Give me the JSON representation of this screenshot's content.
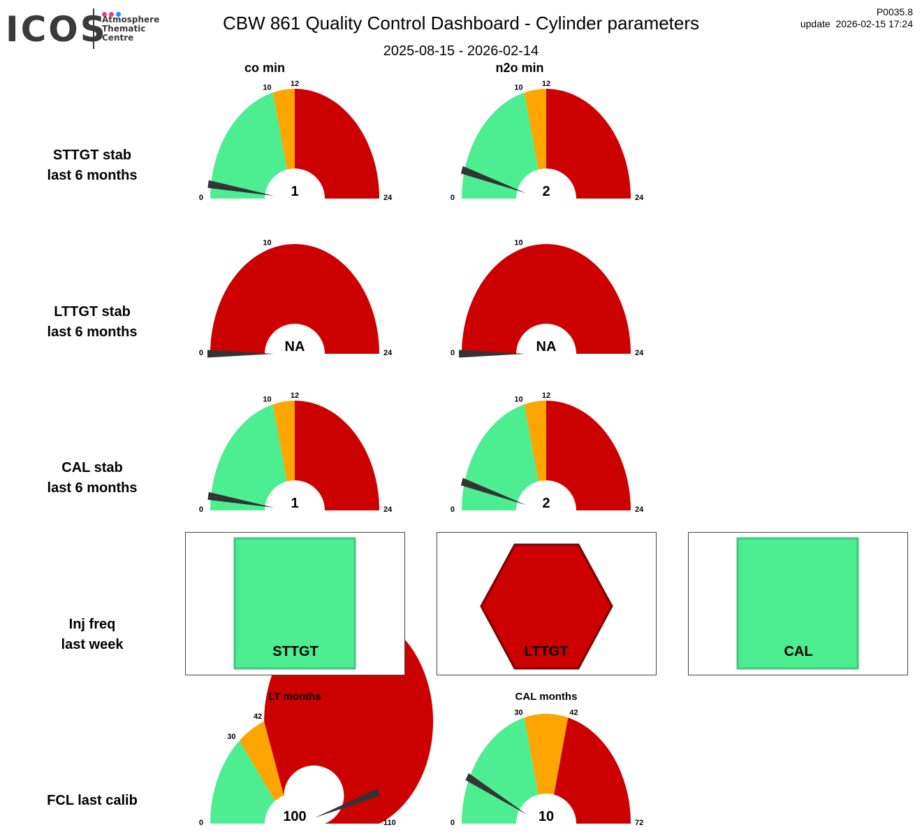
{
  "logo": {
    "main": "ICOS",
    "dot_colors": [
      "#e83e8c",
      "#e83e8c",
      "#1e90ff"
    ],
    "sub_lines": [
      "Atmosphere",
      "Thematic",
      "Centre"
    ]
  },
  "header": {
    "title": "CBW 861 Quality Control Dashboard - Cylinder parameters",
    "period": "2025-08-15 - 2026-02-14",
    "code": "P0035.8",
    "update": "update  2026-02-15 17:24"
  },
  "columns": [
    "co min",
    "n2o min"
  ],
  "rows": [
    {
      "line1": "STTGT stab",
      "line2": "last 6 months"
    },
    {
      "line1": "LTTGT stab",
      "line2": "last 6 months"
    },
    {
      "line1": "CAL stab",
      "line2": "last 6 months"
    },
    {
      "line1": "Inj freq",
      "line2": "last week"
    },
    {
      "line1": "FCL last calib",
      "line2": ""
    }
  ],
  "colors": {
    "green": "#4ded91",
    "orange": "#ffa500",
    "red": "#cc0000",
    "needle": "#333333",
    "panel_green_edge": "#3cc878",
    "panel_red_edge": "#7a0000"
  },
  "chart_data": [
    {
      "type": "gauge",
      "row": "STTGT stab",
      "column": "co min",
      "min": 0,
      "max": 24,
      "value": 1,
      "display": "1",
      "ticks": [
        "0",
        "10",
        "12",
        "24"
      ],
      "bands": [
        {
          "from": 0,
          "to": 10,
          "color": "green"
        },
        {
          "from": 10,
          "to": 12,
          "color": "orange"
        },
        {
          "from": 12,
          "to": 24,
          "color": "red"
        }
      ]
    },
    {
      "type": "gauge",
      "row": "STTGT stab",
      "column": "n2o min",
      "min": 0,
      "max": 24,
      "value": 2,
      "display": "2",
      "ticks": [
        "0",
        "10",
        "12",
        "24"
      ],
      "bands": [
        {
          "from": 0,
          "to": 10,
          "color": "green"
        },
        {
          "from": 10,
          "to": 12,
          "color": "orange"
        },
        {
          "from": 12,
          "to": 24,
          "color": "red"
        }
      ]
    },
    {
      "type": "gauge",
      "row": "LTTGT stab",
      "column": "co min",
      "min": 0,
      "max": 24,
      "value": 0,
      "display": "NA",
      "ticks": [
        "0",
        "10",
        "24"
      ],
      "bands": [
        {
          "from": 0,
          "to": 24,
          "color": "red"
        }
      ]
    },
    {
      "type": "gauge",
      "row": "LTTGT stab",
      "column": "n2o min",
      "min": 0,
      "max": 24,
      "value": 0,
      "display": "NA",
      "ticks": [
        "0",
        "10",
        "24"
      ],
      "bands": [
        {
          "from": 0,
          "to": 24,
          "color": "red"
        }
      ]
    },
    {
      "type": "gauge",
      "row": "CAL stab",
      "column": "co min",
      "min": 0,
      "max": 24,
      "value": 1,
      "display": "1",
      "ticks": [
        "0",
        "10",
        "12",
        "24"
      ],
      "bands": [
        {
          "from": 0,
          "to": 10,
          "color": "green"
        },
        {
          "from": 10,
          "to": 12,
          "color": "orange"
        },
        {
          "from": 12,
          "to": 24,
          "color": "red"
        }
      ]
    },
    {
      "type": "gauge",
      "row": "CAL stab",
      "column": "n2o min",
      "min": 0,
      "max": 24,
      "value": 2,
      "display": "2",
      "ticks": [
        "0",
        "10",
        "12",
        "24"
      ],
      "bands": [
        {
          "from": 0,
          "to": 10,
          "color": "green"
        },
        {
          "from": 10,
          "to": 12,
          "color": "orange"
        },
        {
          "from": 12,
          "to": 24,
          "color": "red"
        }
      ]
    },
    {
      "type": "status",
      "row": "Inj freq",
      "label": "STTGT",
      "shape": "square",
      "status": "ok"
    },
    {
      "type": "status",
      "row": "Inj freq",
      "label": "LTTGT",
      "shape": "hexagon",
      "status": "alert"
    },
    {
      "type": "status",
      "row": "Inj freq",
      "label": "CAL",
      "shape": "square",
      "status": "ok"
    },
    {
      "type": "gauge",
      "row": "FCL last calib",
      "column": "LT months",
      "title": "LT months",
      "min": 0,
      "max": 110,
      "value": 100,
      "display": "100",
      "ticks": [
        "0",
        "30",
        "42",
        "110"
      ],
      "bands": [
        {
          "from": 0,
          "to": 30,
          "color": "green"
        },
        {
          "from": 30,
          "to": 42,
          "color": "orange"
        },
        {
          "from": 42,
          "to": 110,
          "color": "red"
        }
      ]
    },
    {
      "type": "gauge",
      "row": "FCL last calib",
      "column": "CAL months",
      "title": "CAL months",
      "min": 0,
      "max": 72,
      "value": 10,
      "display": "10",
      "ticks": [
        "0",
        "30",
        "42",
        "72"
      ],
      "bands": [
        {
          "from": 0,
          "to": 30,
          "color": "green"
        },
        {
          "from": 30,
          "to": 42,
          "color": "orange"
        },
        {
          "from": 42,
          "to": 72,
          "color": "red"
        }
      ]
    }
  ]
}
